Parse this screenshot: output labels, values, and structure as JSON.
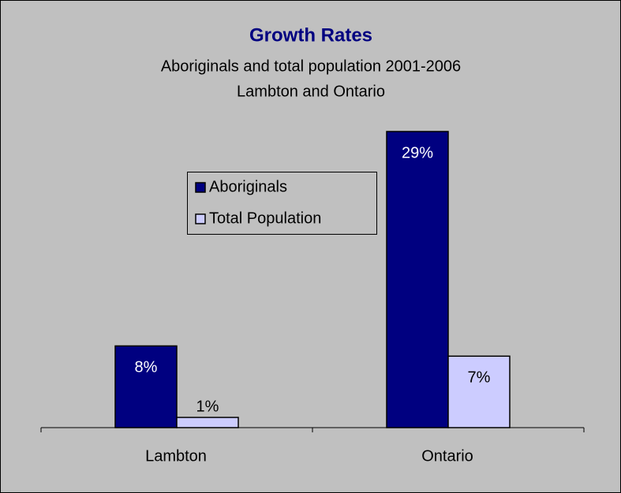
{
  "chart_data": {
    "type": "bar",
    "title": "Growth Rates",
    "subtitle": [
      "Aboriginals and total population 2001-2006",
      "Lambton and Ontario"
    ],
    "categories": [
      "Lambton",
      "Ontario"
    ],
    "series": [
      {
        "name": "Aboriginals",
        "color": "#000080",
        "values": [
          8,
          29
        ],
        "value_labels": [
          "8%",
          "29%"
        ]
      },
      {
        "name": "Total Population",
        "color": "#ccccff",
        "values": [
          1,
          7
        ],
        "value_labels": [
          "1%",
          "7%"
        ]
      }
    ]
  }
}
